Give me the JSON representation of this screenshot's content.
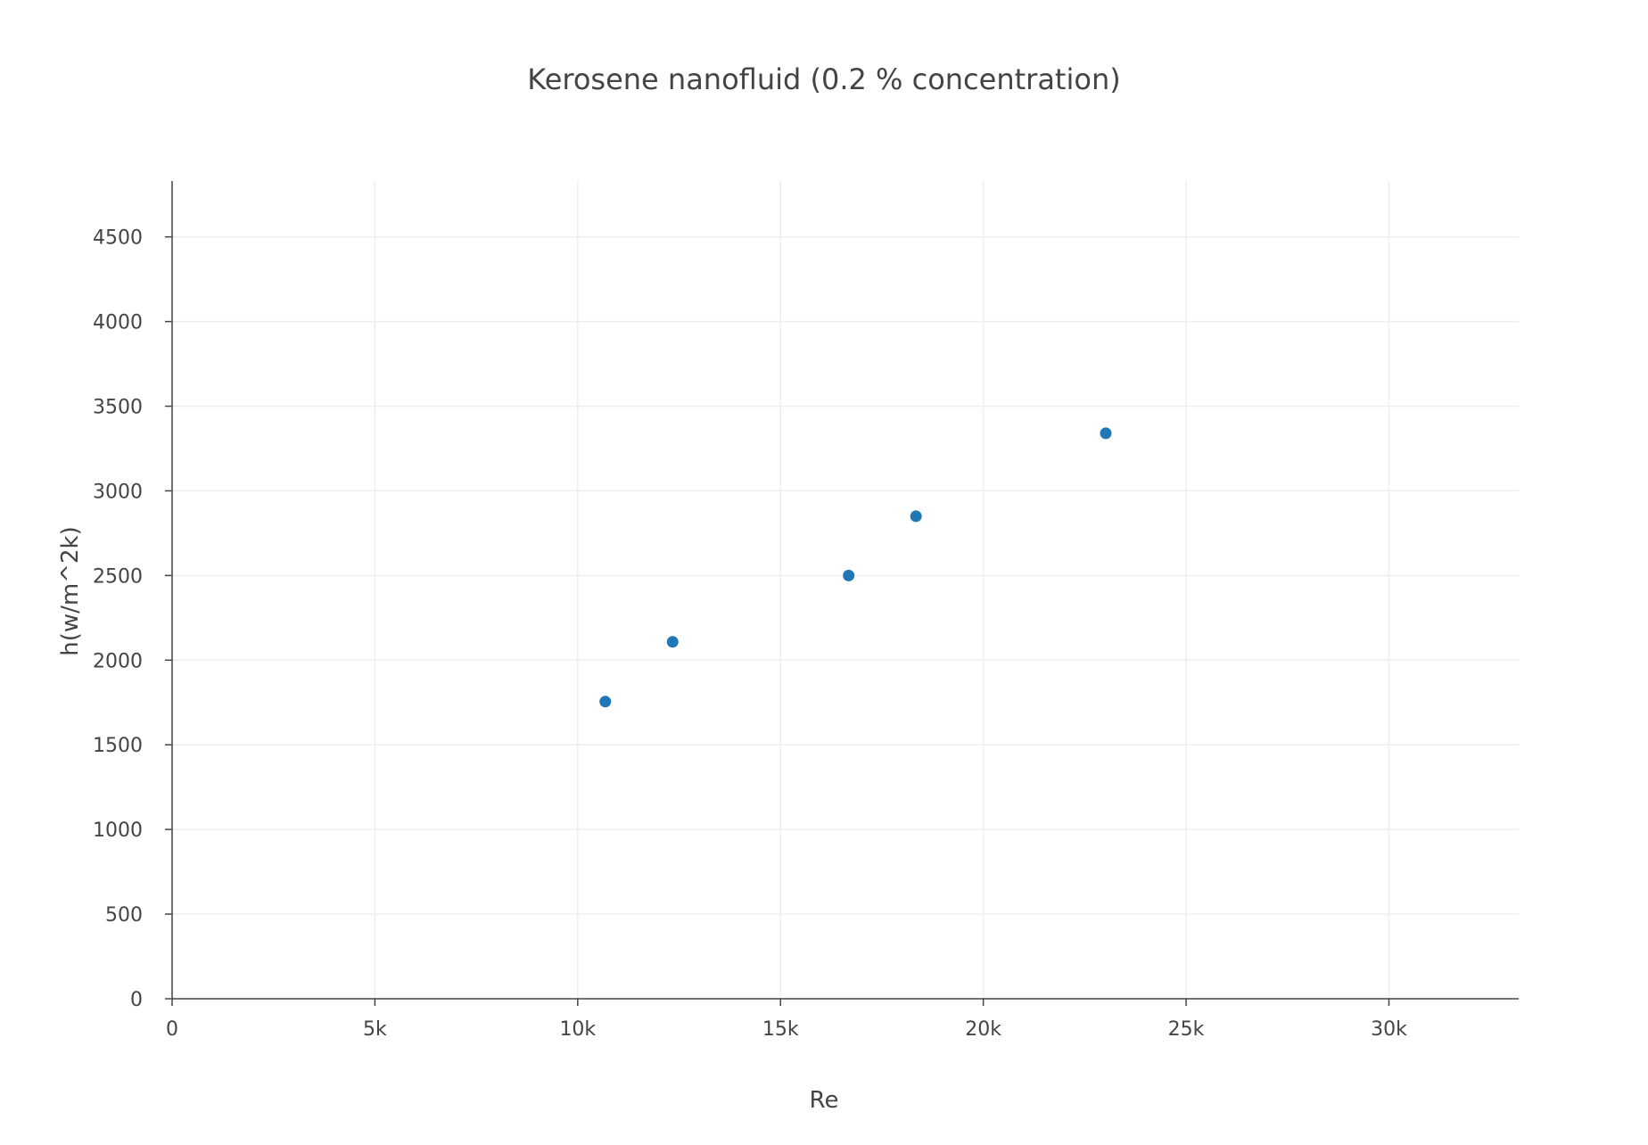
{
  "chart_data": {
    "type": "scatter",
    "title": "Kerosene nanofluid (0.2 % concentration)",
    "xlabel": "Re",
    "ylabel": "h(w/m^2k)",
    "xlim": [
      0,
      33200
    ],
    "ylim": [
      0,
      4830
    ],
    "x_ticks": [
      0,
      5000,
      10000,
      15000,
      20000,
      25000,
      30000
    ],
    "x_tick_labels": [
      "0",
      "5k",
      "10k",
      "15k",
      "20k",
      "25k",
      "30k"
    ],
    "y_ticks": [
      0,
      500,
      1000,
      1500,
      2000,
      2500,
      3000,
      3500,
      4000,
      4500
    ],
    "y_tick_labels": [
      "0",
      "500",
      "1000",
      "1500",
      "2000",
      "2500",
      "3000",
      "3500",
      "4000",
      "4500"
    ],
    "grid": true,
    "legend": false,
    "marker_color": "#1f77b4",
    "series": [
      {
        "x": [
          10680,
          12340,
          16680,
          18340,
          23020
        ],
        "y": [
          1755,
          2108,
          2500,
          2850,
          3340
        ]
      }
    ]
  }
}
